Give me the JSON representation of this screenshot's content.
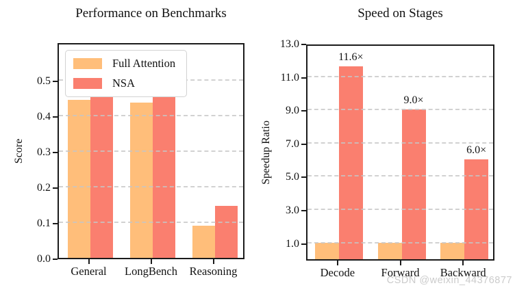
{
  "page": {
    "background": "#ffffff",
    "watermark": "CSDN @weixin_44376877"
  },
  "style": {
    "full_attention_color": "#FFBE7A",
    "nsa_color": "#FA7F6F",
    "spine_color": "#1a1a1a",
    "grid_color": "#c6c6c6",
    "watermark_color": "#cbcbcb"
  },
  "chart_data": [
    {
      "type": "bar",
      "title": "Performance on Benchmarks",
      "ylabel": "Score",
      "xlabel": "",
      "categories": [
        "General",
        "LongBench",
        "Reasoning"
      ],
      "series": [
        {
          "name": "Full Attention",
          "color": "#FFBE7A",
          "values": [
            0.443,
            0.437,
            0.091
          ]
        },
        {
          "name": "NSA",
          "color": "#FA7F6F",
          "values": [
            0.456,
            0.469,
            0.146
          ]
        }
      ],
      "ylim": [
        0,
        0.607
      ],
      "yticks": [
        0.0,
        0.1,
        0.2,
        0.3,
        0.4,
        0.5
      ],
      "ytick_labels": [
        "0.0",
        "0.1",
        "0.2",
        "0.3",
        "0.4",
        "0.5"
      ],
      "grid": true,
      "grid_style": "dashed",
      "legend": {
        "visible": true,
        "location": "upper left",
        "entries": [
          "Full Attention",
          "NSA"
        ]
      }
    },
    {
      "type": "bar",
      "title": "Speed on Stages",
      "ylabel": "Speedup Ratio",
      "xlabel": "",
      "categories": [
        "Decode",
        "Forward",
        "Backward"
      ],
      "series": [
        {
          "name": "Full Attention",
          "color": "#FFBE7A",
          "values": [
            1.0,
            1.0,
            1.0
          ]
        },
        {
          "name": "NSA",
          "color": "#FA7F6F",
          "values": [
            11.6,
            9.0,
            6.0
          ],
          "bar_labels": [
            "11.6×",
            "9.0×",
            "6.0×"
          ]
        }
      ],
      "ylim": [
        0,
        13
      ],
      "yticks": [
        1.0,
        3.0,
        5.0,
        7.0,
        9.0,
        11.0,
        13.0
      ],
      "ytick_labels": [
        "1.0",
        "3.0",
        "5.0",
        "7.0",
        "9.0",
        "11.0",
        "13.0"
      ],
      "grid": true,
      "grid_style": "dashed",
      "legend": {
        "visible": false
      }
    }
  ]
}
